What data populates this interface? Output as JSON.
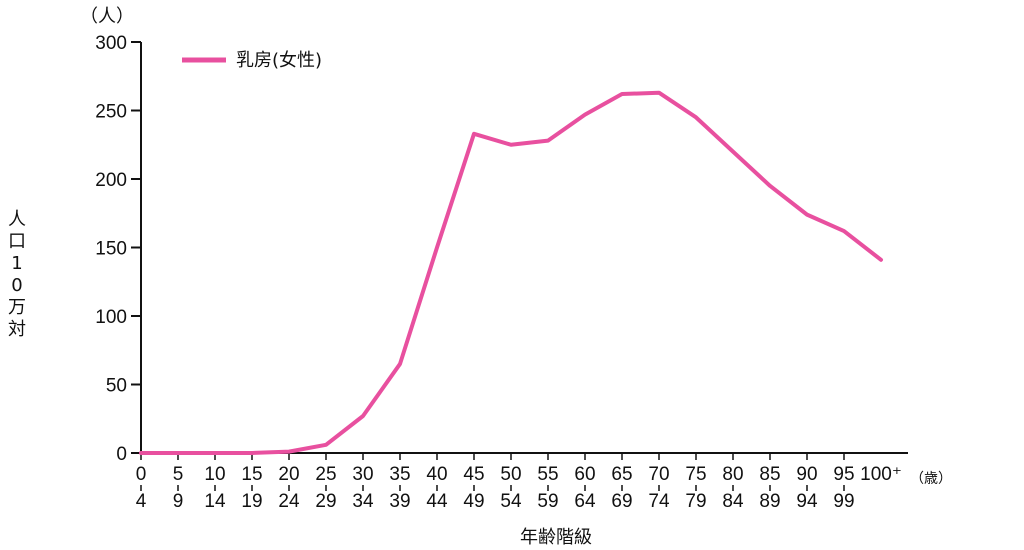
{
  "chart_data": {
    "type": "line",
    "title": "",
    "ylabel": "人口10万対",
    "yunit": "（人）",
    "xlabel": "年齢階級",
    "xunit": "（歳）",
    "ylim": [
      0,
      300
    ],
    "yticks": [
      0,
      50,
      100,
      150,
      200,
      250,
      300
    ],
    "grid": false,
    "legend_position": "top-left",
    "categories": [
      {
        "top": "0",
        "bottom": "4"
      },
      {
        "top": "5",
        "bottom": "9"
      },
      {
        "top": "10",
        "bottom": "14"
      },
      {
        "top": "15",
        "bottom": "19"
      },
      {
        "top": "20",
        "bottom": "24"
      },
      {
        "top": "25",
        "bottom": "29"
      },
      {
        "top": "30",
        "bottom": "34"
      },
      {
        "top": "35",
        "bottom": "39"
      },
      {
        "top": "40",
        "bottom": "44"
      },
      {
        "top": "45",
        "bottom": "49"
      },
      {
        "top": "50",
        "bottom": "54"
      },
      {
        "top": "55",
        "bottom": "59"
      },
      {
        "top": "60",
        "bottom": "64"
      },
      {
        "top": "65",
        "bottom": "69"
      },
      {
        "top": "70",
        "bottom": "74"
      },
      {
        "top": "75",
        "bottom": "79"
      },
      {
        "top": "80",
        "bottom": "84"
      },
      {
        "top": "85",
        "bottom": "89"
      },
      {
        "top": "90",
        "bottom": "94"
      },
      {
        "top": "95",
        "bottom": "99"
      },
      {
        "top": "100⁺",
        "bottom": ""
      }
    ],
    "series": [
      {
        "name": "乳房(女性)",
        "color": "#e8509f",
        "values": [
          0,
          0,
          0,
          0,
          1,
          6,
          27,
          65,
          150,
          233,
          225,
          228,
          247,
          262,
          263,
          245,
          220,
          195,
          174,
          162,
          141
        ]
      }
    ]
  }
}
